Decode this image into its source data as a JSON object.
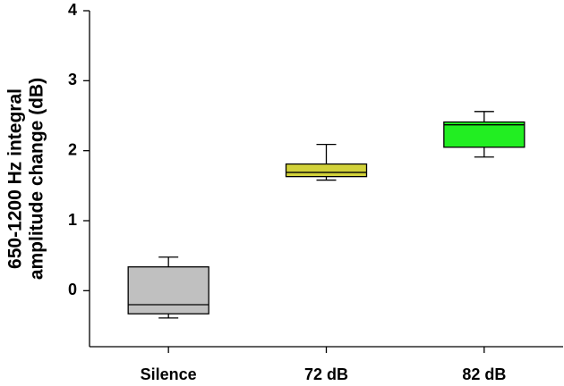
{
  "chart_data": {
    "type": "box",
    "ylabel": [
      "650-1200 Hz integral",
      "amplitude change (dB)"
    ],
    "categories": [
      "Silence",
      "72 dB",
      "82 dB"
    ],
    "boxes": [
      {
        "min": -0.39,
        "q1": -0.33,
        "median": -0.2,
        "q3": 0.34,
        "max": 0.48,
        "color": "#c0c0c0"
      },
      {
        "min": 1.58,
        "q1": 1.63,
        "median": 1.69,
        "q3": 1.81,
        "max": 2.09,
        "color": "#d2d23a"
      },
      {
        "min": 1.91,
        "q1": 2.05,
        "median": 2.37,
        "q3": 2.41,
        "max": 2.56,
        "color": "#22ee22"
      }
    ],
    "ylim": [
      -0.8,
      4
    ],
    "yticks": [
      0,
      1,
      2,
      3,
      4
    ]
  }
}
